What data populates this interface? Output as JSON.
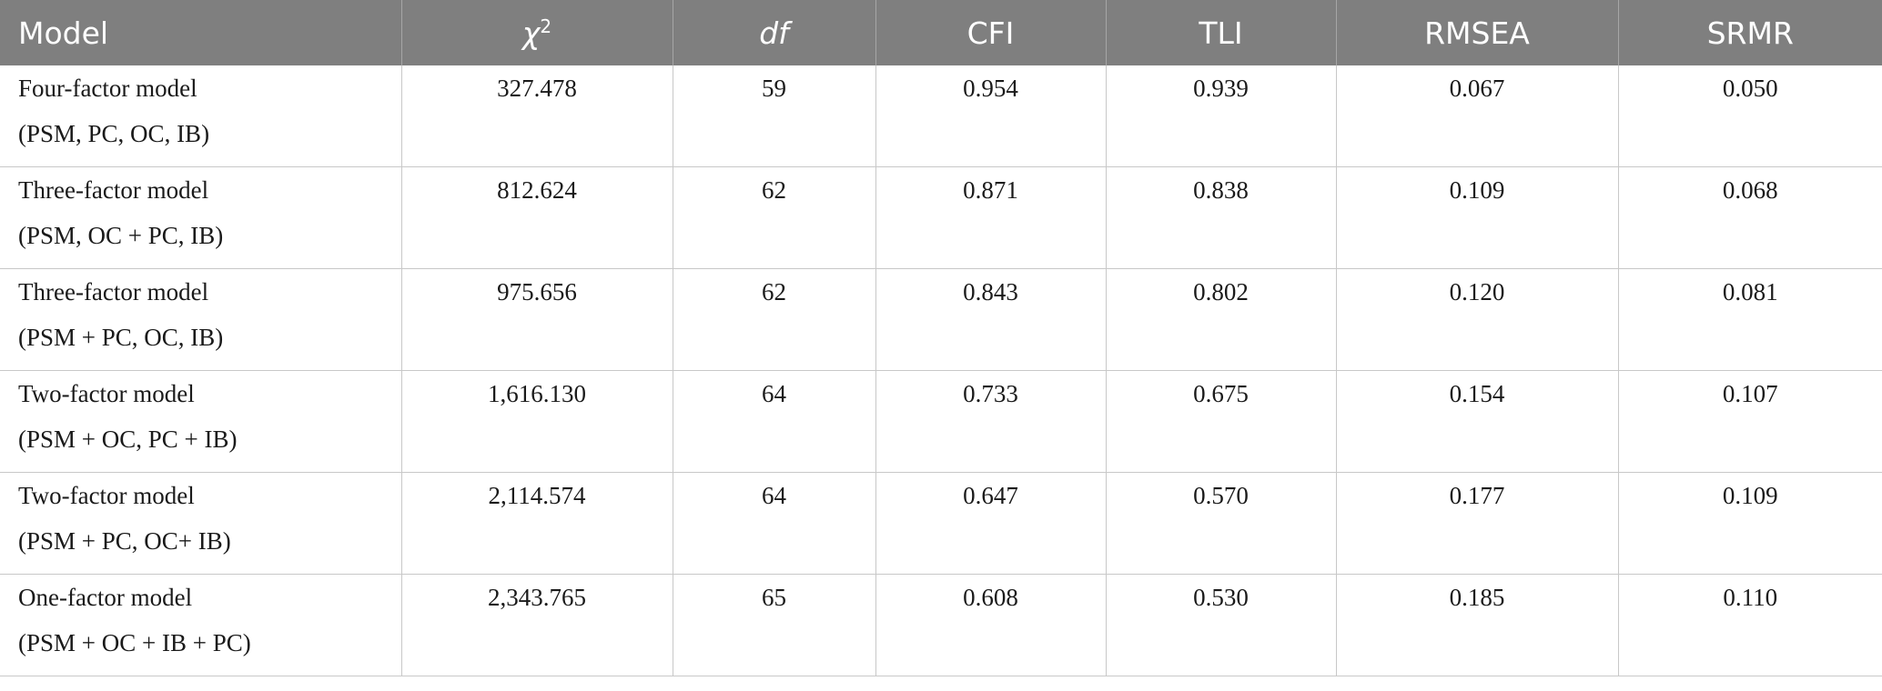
{
  "table": {
    "headers": [
      "Model",
      "χ²",
      "df",
      "CFI",
      "TLI",
      "RMSEA",
      "SRMR"
    ],
    "header_chi_base": "χ",
    "header_chi_sup": "2",
    "rows": [
      {
        "model_line1": "Four-factor model",
        "model_line2": "(PSM, PC, OC, IB)",
        "chi2": "327.478",
        "df": "59",
        "cfi": "0.954",
        "tli": "0.939",
        "rmsea": "0.067",
        "srmr": "0.050"
      },
      {
        "model_line1": "Three-factor model",
        "model_line2": "(PSM, OC + PC, IB)",
        "chi2": "812.624",
        "df": "62",
        "cfi": "0.871",
        "tli": "0.838",
        "rmsea": "0.109",
        "srmr": "0.068"
      },
      {
        "model_line1": "Three-factor model",
        "model_line2": "(PSM + PC, OC, IB)",
        "chi2": "975.656",
        "df": "62",
        "cfi": "0.843",
        "tli": "0.802",
        "rmsea": "0.120",
        "srmr": "0.081"
      },
      {
        "model_line1": "Two-factor model",
        "model_line2": "(PSM + OC, PC + IB)",
        "chi2": "1,616.130",
        "df": "64",
        "cfi": "0.733",
        "tli": "0.675",
        "rmsea": "0.154",
        "srmr": "0.107"
      },
      {
        "model_line1": "Two-factor model",
        "model_line2": "(PSM + PC, OC+ IB)",
        "chi2": "2,114.574",
        "df": "64",
        "cfi": "0.647",
        "tli": "0.570",
        "rmsea": "0.177",
        "srmr": "0.109"
      },
      {
        "model_line1": "One-factor model",
        "model_line2": "(PSM + OC + IB + PC)",
        "chi2": "2,343.765",
        "df": "65",
        "cfi": "0.608",
        "tli": "0.530",
        "rmsea": "0.185",
        "srmr": "0.110"
      }
    ]
  },
  "colors": {
    "header_bg": "#7f7f7f",
    "header_text": "#ffffff",
    "grid": "#c8c8c8"
  }
}
